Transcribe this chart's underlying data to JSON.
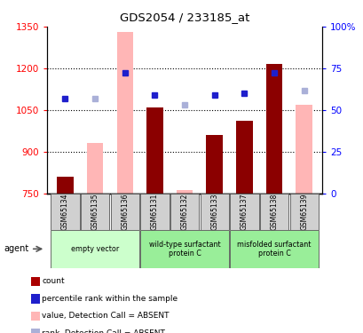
{
  "title": "GDS2054 / 233185_at",
  "categories": [
    "GSM65134",
    "GSM65135",
    "GSM65136",
    "GSM65131",
    "GSM65132",
    "GSM65133",
    "GSM65137",
    "GSM65138",
    "GSM65139"
  ],
  "bar_values": [
    810,
    null,
    null,
    1060,
    null,
    960,
    1010,
    1215,
    null
  ],
  "bar_pink_values": [
    null,
    930,
    1330,
    null,
    762,
    null,
    null,
    null,
    1068
  ],
  "dot_dark_blue": [
    1092,
    null,
    1185,
    1105,
    null,
    1105,
    1110,
    1185,
    null
  ],
  "dot_light_blue": [
    null,
    1092,
    null,
    null,
    1068,
    null,
    null,
    null,
    1120
  ],
  "ylim_left": [
    750,
    1350
  ],
  "ylim_right": [
    0,
    100
  ],
  "yticks_left": [
    750,
    900,
    1050,
    1200,
    1350
  ],
  "yticks_right": [
    0,
    25,
    50,
    75,
    100
  ],
  "ytick_labels_right": [
    "0",
    "25",
    "50",
    "75",
    "100%"
  ],
  "color_bar_dark": "#8b0000",
  "color_bar_pink": "#ffb6b6",
  "color_dot_dark_blue": "#1f1fcc",
  "color_dot_light_blue": "#aab0d8",
  "group_colors": [
    "#ccffcc",
    "#99ee99",
    "#99ee99"
  ],
  "group_labels": [
    "empty vector",
    "wild-type surfactant\nprotein C",
    "misfolded surfactant\nprotein C"
  ],
  "group_ranges": [
    [
      0,
      3
    ],
    [
      3,
      6
    ],
    [
      6,
      9
    ]
  ],
  "legend_items": [
    {
      "color": "#aa0000",
      "label": "count"
    },
    {
      "color": "#1f1fcc",
      "label": "percentile rank within the sample"
    },
    {
      "color": "#ffb6b6",
      "label": "value, Detection Call = ABSENT"
    },
    {
      "color": "#aab0d8",
      "label": "rank, Detection Call = ABSENT"
    }
  ]
}
